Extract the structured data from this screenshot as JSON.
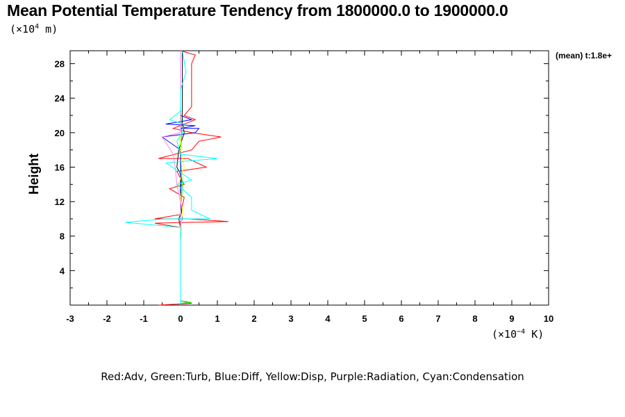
{
  "chart_data": {
    "type": "line",
    "title": "Mean Potential Temperature Tendency from 1800000.0 to 1900000.0",
    "ylabel": "Height",
    "y_scale_prefix": "(×10",
    "y_scale_exp": "4",
    "y_scale_suffix": " m)",
    "x_scale_prefix": "(×10",
    "x_scale_exp": "−4",
    "x_scale_suffix": " K)",
    "legend_text": "Red:Adv, Green:Turb, Blue:Diff, Yellow:Disp, Purple:Radiation, Cyan:Condensation",
    "mean_label": "(mean) t:1.8e+",
    "xlim": [
      -3,
      10
    ],
    "ylim": [
      0,
      29.5
    ],
    "x_ticks": [
      "-3",
      "-2",
      "-1",
      "0",
      "1",
      "2",
      "3",
      "4",
      "5",
      "6",
      "7",
      "8",
      "9",
      "10"
    ],
    "y_ticks": [
      "4",
      "8",
      "12",
      "16",
      "20",
      "24",
      "28"
    ],
    "series": [
      {
        "color": "#000000",
        "points": [
          [
            0,
            0
          ],
          [
            0,
            9
          ],
          [
            -0.05,
            10
          ],
          [
            0.05,
            11
          ],
          [
            0,
            12
          ],
          [
            0.02,
            15
          ],
          [
            -0.1,
            16
          ],
          [
            -0.05,
            18
          ],
          [
            0.1,
            20
          ],
          [
            0.05,
            21
          ],
          [
            0.05,
            22
          ],
          [
            0.05,
            25
          ],
          [
            0.05,
            29.5
          ]
        ]
      },
      {
        "color": "#ff0000",
        "points": [
          [
            -0.6,
            0
          ],
          [
            0.3,
            0.2
          ],
          [
            0,
            0.5
          ],
          [
            0,
            9
          ],
          [
            -0.7,
            9.5
          ],
          [
            1.3,
            9.7
          ],
          [
            0.2,
            10
          ],
          [
            -0.7,
            10
          ],
          [
            0,
            10.5
          ],
          [
            0.1,
            12.5
          ],
          [
            -0.3,
            13.5
          ],
          [
            0.1,
            14
          ],
          [
            -0.1,
            15.5
          ],
          [
            0.7,
            16
          ],
          [
            0.2,
            17
          ],
          [
            -0.6,
            17
          ],
          [
            0.3,
            18
          ],
          [
            0.5,
            19
          ],
          [
            1.1,
            19.5
          ],
          [
            0.3,
            20
          ],
          [
            -0.2,
            20.5
          ],
          [
            0.4,
            21.5
          ],
          [
            0.1,
            22
          ],
          [
            0.3,
            23
          ],
          [
            0.3,
            26
          ],
          [
            0.3,
            28
          ],
          [
            0.4,
            29
          ],
          [
            0,
            29.5
          ]
        ]
      },
      {
        "color": "#00ff00",
        "points": [
          [
            0,
            0.2
          ],
          [
            0.3,
            0.3
          ],
          [
            0,
            0.5
          ],
          [
            0,
            7.5
          ],
          [
            0.02,
            9
          ],
          [
            0,
            10
          ],
          [
            0.05,
            14
          ],
          [
            0,
            17
          ],
          [
            0.03,
            20
          ],
          [
            0,
            23
          ],
          [
            0,
            29.5
          ]
        ]
      },
      {
        "color": "#0000ff",
        "points": [
          [
            0,
            0
          ],
          [
            0,
            9.5
          ],
          [
            0.05,
            10
          ],
          [
            0,
            12
          ],
          [
            0,
            18
          ],
          [
            -0.5,
            19.5
          ],
          [
            0.4,
            20
          ],
          [
            0.5,
            20.5
          ],
          [
            0,
            20.5
          ],
          [
            0.4,
            20.8
          ],
          [
            -0.4,
            21
          ],
          [
            0.3,
            21.5
          ],
          [
            0,
            22
          ],
          [
            0,
            29.5
          ]
        ]
      },
      {
        "color": "#ffff00",
        "points": [
          [
            0,
            8
          ],
          [
            0.05,
            11
          ],
          [
            -0.05,
            14
          ],
          [
            0.1,
            16
          ],
          [
            0,
            18
          ],
          [
            0,
            20
          ]
        ]
      },
      {
        "color": "#ff80ff",
        "points": [
          [
            0,
            8
          ],
          [
            0,
            12
          ],
          [
            -0.1,
            14
          ],
          [
            -0.15,
            16
          ],
          [
            -0.2,
            17.5
          ],
          [
            -0.5,
            19.5
          ],
          [
            0,
            20
          ],
          [
            0,
            29.5
          ]
        ]
      },
      {
        "color": "#00ffff",
        "points": [
          [
            0,
            0
          ],
          [
            0,
            9
          ],
          [
            -1.5,
            9.6
          ],
          [
            -0.4,
            10
          ],
          [
            0.8,
            10
          ],
          [
            0.3,
            11
          ],
          [
            0.3,
            12.5
          ],
          [
            -0.1,
            14
          ],
          [
            0.3,
            14.5
          ],
          [
            -0.4,
            16.5
          ],
          [
            1,
            17
          ],
          [
            0,
            17.5
          ],
          [
            -0.1,
            19
          ],
          [
            0.05,
            20
          ],
          [
            0.1,
            21
          ],
          [
            -0.3,
            21.5
          ],
          [
            0,
            22.5
          ],
          [
            0,
            25
          ],
          [
            0.15,
            27
          ],
          [
            0.05,
            29.5
          ]
        ]
      }
    ]
  }
}
